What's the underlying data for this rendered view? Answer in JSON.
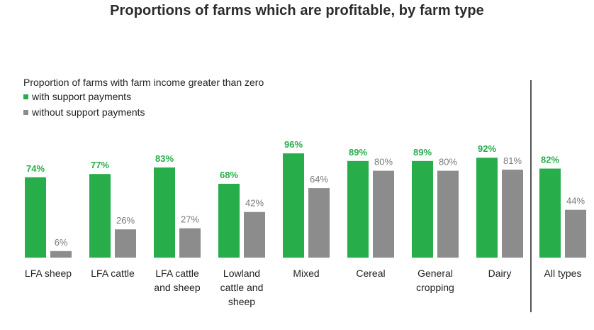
{
  "colors": {
    "with": "#27ad4a",
    "without": "#8c8c8c",
    "text": "#222222",
    "divider": "#555555"
  },
  "chart_data": {
    "type": "bar",
    "title": "Proportions of farms which are profitable, by farm type",
    "subtitle": "Proportion of farms  with farm income greater than zero",
    "legend": [
      "with support payments",
      "without support payments"
    ],
    "categories": [
      [
        "LFA sheep"
      ],
      [
        "LFA cattle"
      ],
      [
        "LFA cattle",
        "and sheep"
      ],
      [
        "Lowland",
        "cattle and",
        "sheep"
      ],
      [
        "Mixed"
      ],
      [
        "Cereal"
      ],
      [
        "General",
        "cropping"
      ],
      [
        "Dairy"
      ],
      [
        "All types"
      ]
    ],
    "series": [
      {
        "name": "with support payments",
        "values": [
          74,
          77,
          83,
          68,
          96,
          89,
          89,
          92,
          82
        ],
        "labels": [
          "74%",
          "77%",
          "83%",
          "68%",
          "96%",
          "89%",
          "89%",
          "92%",
          "82%"
        ]
      },
      {
        "name": "without support payments",
        "values": [
          6,
          26,
          27,
          42,
          64,
          80,
          80,
          81,
          44
        ],
        "labels": [
          "6%",
          "26%",
          "27%",
          "42%",
          "64%",
          "80%",
          "80%",
          "81%",
          "44%"
        ]
      }
    ],
    "ylim": [
      0,
      100
    ],
    "grid": false,
    "legend_position": "top-left",
    "separator_before_last": true
  }
}
